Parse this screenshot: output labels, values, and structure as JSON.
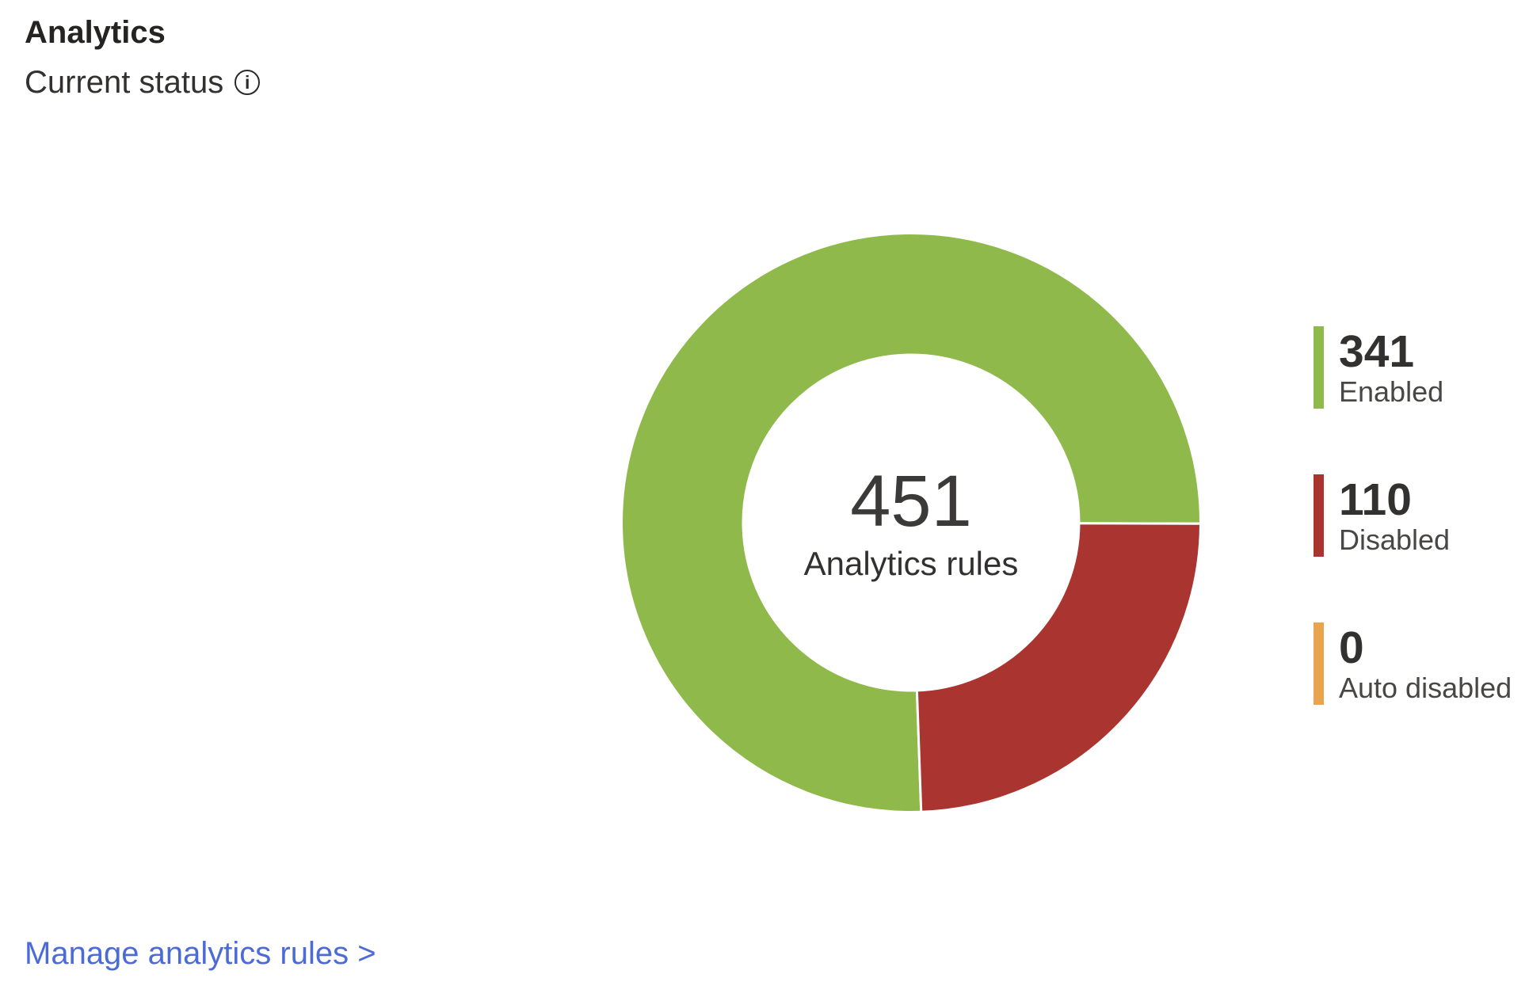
{
  "header": {
    "title": "Analytics",
    "subtitle": "Current status",
    "info_icon_glyph": "i"
  },
  "chart_data": {
    "type": "pie",
    "subtype": "donut",
    "title": "Analytics rules",
    "center": {
      "value": "451",
      "label": "Analytics rules"
    },
    "total": 451,
    "segments": [
      {
        "label": "Enabled",
        "value": 341,
        "color": "#8fb94a"
      },
      {
        "label": "Disabled",
        "value": 110,
        "color": "#aa342f"
      },
      {
        "label": "Auto disabled",
        "value": 0,
        "color": "#e8a44e"
      }
    ],
    "layout": {
      "start_angle_deg": 178,
      "inner_radius_ratio": 0.58,
      "separator_color": "#ffffff",
      "separator_width": 3,
      "legend_position": "right"
    }
  },
  "footer": {
    "manage_link_label": "Manage analytics rules >"
  },
  "colors": {
    "title_text": "#252423",
    "body_text": "#323130",
    "secondary_text": "#494745",
    "link": "#4c6bd8",
    "background": "#ffffff"
  }
}
